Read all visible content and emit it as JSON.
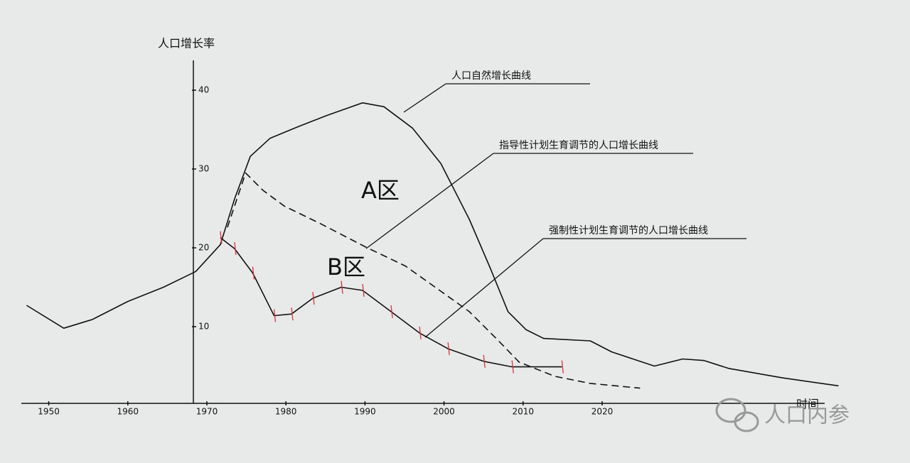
{
  "chart_data": {
    "type": "line",
    "y_label": "人口增长率",
    "x_label": "时间",
    "xlim": [
      1946,
      2052
    ],
    "xticks": [
      1950,
      1960,
      1970,
      1980,
      1990,
      2000,
      2010,
      2020
    ],
    "ylim": [
      0,
      44
    ],
    "yticks": [
      10,
      20,
      30,
      40
    ],
    "series": [
      {
        "name": "人口自然增长曲线",
        "color": "#111111",
        "dash": false,
        "x": [
          1947.2,
          1951.9,
          1955.5,
          1960.0,
          1964.5,
          1968.6,
          1971.7,
          1973.5,
          1975.5,
          1978.0,
          1981.6,
          1985.2,
          1989.7,
          1992.4,
          1996.0,
          1999.6,
          2003.2,
          2005.9,
          2008.1,
          2010.4,
          2012.6,
          2018.5,
          2021.2,
          2026.6,
          2030.2,
          2032.9,
          2036.0,
          2042.8,
          2049.9
        ],
        "values": [
          12.7,
          9.8,
          10.9,
          13.2,
          15.0,
          17.0,
          20.4,
          26.2,
          31.6,
          33.9,
          35.4,
          36.8,
          38.4,
          37.9,
          35.2,
          30.7,
          23.6,
          17.3,
          11.9,
          9.6,
          8.5,
          8.2,
          6.8,
          5.0,
          5.9,
          5.7,
          4.7,
          3.5,
          2.5
        ]
      },
      {
        "name": "指导性计划生育调节的人口增长曲线",
        "color": "#111111",
        "dash": true,
        "x": [
          1972.6,
          1974.9,
          1977.1,
          1979.8,
          1984.3,
          1990.1,
          1995.1,
          1999.6,
          2003.2,
          2006.8,
          2009.5,
          2014.0,
          2018.5,
          2024.8
        ],
        "values": [
          22.6,
          29.5,
          27.3,
          25.3,
          23.1,
          20.1,
          17.7,
          14.5,
          11.9,
          8.3,
          5.5,
          3.7,
          2.8,
          2.2
        ]
      },
      {
        "name": "强制性计划生育调节的人口增长曲线",
        "color": "#111111",
        "dash": false,
        "marker_color": "#d8323a",
        "x": [
          1971.7,
          1973.5,
          1975.8,
          1978.5,
          1980.7,
          1983.4,
          1987.0,
          1989.7,
          1993.3,
          1996.9,
          2000.5,
          2005.0,
          2008.6,
          2014.9
        ],
        "values": [
          21.3,
          19.9,
          16.8,
          11.4,
          11.6,
          13.6,
          15.0,
          14.6,
          11.9,
          9.2,
          7.2,
          5.6,
          4.9,
          4.9
        ]
      }
    ],
    "annotations": [
      "A区",
      "B区"
    ],
    "watermark": "人口内参"
  }
}
